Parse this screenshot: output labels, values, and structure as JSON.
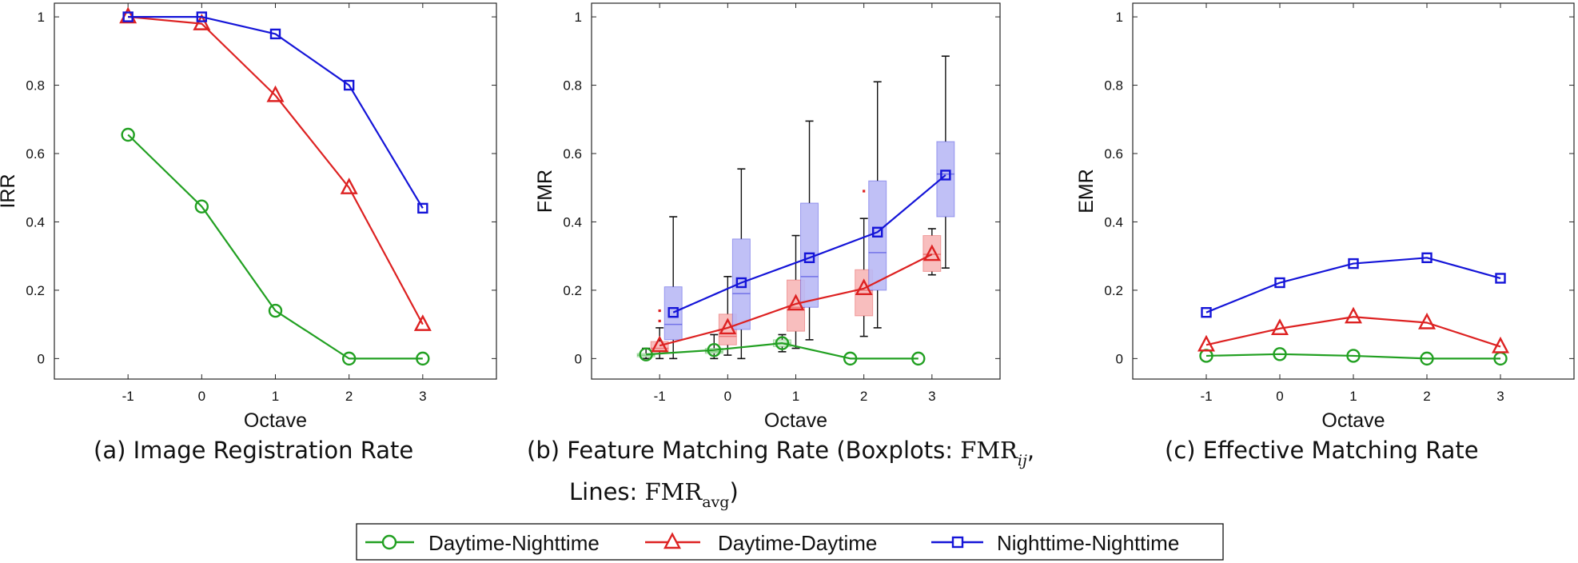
{
  "colors": {
    "green": "#22a022",
    "red": "#dd2222",
    "blue": "#1515d8",
    "redFill": "#f7b7b7",
    "blueFill": "#b9b9f5"
  },
  "legend": [
    "Daytime-Nighttime",
    "Daytime-Daytime",
    "Nighttime-Nighttime"
  ],
  "captions": {
    "a": "(a) Image Registration Rate",
    "b_line1": "(b)  Feature Matching Rate (Boxplots: ",
    "b_math1": "FMR",
    "b_sub1": "ij",
    "b_comma": ",",
    "b_line2": "Lines: ",
    "b_math2": "FMR",
    "b_sub2": "avg",
    "b_close": ")",
    "c": "(c) Effective Matching Rate"
  },
  "chart_data": [
    {
      "type": "line",
      "xlabel": "Octave",
      "ylabel": "IRR",
      "xticks": [
        "-1",
        "0",
        "1",
        "2",
        "3"
      ],
      "yticks": [
        "0",
        "0.2",
        "0.4",
        "0.6",
        "0.8",
        "1"
      ],
      "xlim": [
        -2,
        4
      ],
      "ylim": [
        -0.06,
        1.04
      ],
      "x": [
        -1,
        0,
        1,
        2,
        3
      ],
      "series": [
        {
          "name": "Daytime-Nighttime",
          "color": "green",
          "marker": "circle",
          "values": [
            0.655,
            0.445,
            0.14,
            0.0,
            0.0
          ]
        },
        {
          "name": "Daytime-Daytime",
          "color": "red",
          "marker": "triangle",
          "values": [
            1.0,
            0.98,
            0.77,
            0.5,
            0.1
          ]
        },
        {
          "name": "Nighttime-Nighttime",
          "color": "blue",
          "marker": "square",
          "values": [
            1.0,
            1.0,
            0.95,
            0.8,
            0.44
          ]
        }
      ]
    },
    {
      "type": "line",
      "xlabel": "Octave",
      "ylabel": "FMR",
      "xticks": [
        "-1",
        "0",
        "1",
        "2",
        "3"
      ],
      "yticks": [
        "0",
        "0.2",
        "0.4",
        "0.6",
        "0.8",
        "1"
      ],
      "xlim": [
        -2,
        4
      ],
      "ylim": [
        -0.06,
        1.04
      ],
      "series": [
        {
          "name": "Daytime-Nighttime",
          "color": "green",
          "marker": "circle",
          "x": [
            -1.2,
            -0.2,
            0.8,
            1.8,
            2.8
          ],
          "values": [
            0.012,
            0.025,
            0.045,
            0.0,
            0.0
          ]
        },
        {
          "name": "Daytime-Daytime",
          "color": "red",
          "marker": "triangle",
          "x": [
            -1,
            0,
            1,
            2,
            3
          ],
          "values": [
            0.038,
            0.09,
            0.16,
            0.205,
            0.305
          ]
        },
        {
          "name": "Nighttime-Nighttime",
          "color": "blue",
          "marker": "square",
          "x": [
            -0.8,
            0.2,
            1.2,
            2.2,
            3.2
          ],
          "values": [
            0.135,
            0.222,
            0.295,
            0.37,
            0.537
          ]
        }
      ],
      "boxplots": [
        {
          "series": "Daytime-Nighttime",
          "color": "green",
          "x": [
            -1.2,
            -0.2,
            0.8,
            1.8,
            2.8
          ],
          "boxes": [
            {
              "q1": 0.005,
              "median": 0.01,
              "q3": 0.015,
              "lo": 0.0,
              "hi": 0.03
            },
            {
              "q1": 0.015,
              "median": 0.02,
              "q3": 0.03,
              "lo": 0.0,
              "hi": 0.07
            },
            {
              "q1": 0.035,
              "median": 0.045,
              "q3": 0.055,
              "lo": 0.02,
              "hi": 0.07
            },
            null,
            null
          ]
        },
        {
          "series": "Daytime-Daytime",
          "color": "red",
          "x": [
            -1,
            0,
            1,
            2,
            3
          ],
          "boxes": [
            {
              "q1": 0.02,
              "median": 0.03,
              "q3": 0.05,
              "lo": 0.0,
              "hi": 0.09,
              "outliers": [
                0.11,
                0.14
              ]
            },
            {
              "q1": 0.04,
              "median": 0.065,
              "q3": 0.13,
              "lo": 0.01,
              "hi": 0.24
            },
            {
              "q1": 0.08,
              "median": 0.15,
              "q3": 0.23,
              "lo": 0.03,
              "hi": 0.36
            },
            {
              "q1": 0.125,
              "median": 0.2,
              "q3": 0.26,
              "lo": 0.065,
              "hi": 0.41,
              "outliers": [
                0.49
              ]
            },
            {
              "q1": 0.255,
              "median": 0.305,
              "q3": 0.36,
              "lo": 0.245,
              "hi": 0.38
            }
          ]
        },
        {
          "series": "Nighttime-Nighttime",
          "color": "blue",
          "x": [
            -0.8,
            0.2,
            1.2,
            2.2,
            3.2
          ],
          "boxes": [
            {
              "q1": 0.055,
              "median": 0.1,
              "q3": 0.21,
              "lo": 0.0,
              "hi": 0.415
            },
            {
              "q1": 0.085,
              "median": 0.19,
              "q3": 0.35,
              "lo": 0.0,
              "hi": 0.555
            },
            {
              "q1": 0.15,
              "median": 0.24,
              "q3": 0.455,
              "lo": 0.055,
              "hi": 0.695
            },
            {
              "q1": 0.2,
              "median": 0.31,
              "q3": 0.52,
              "lo": 0.09,
              "hi": 0.81
            },
            {
              "q1": 0.415,
              "median": 0.54,
              "q3": 0.635,
              "lo": 0.265,
              "hi": 0.885
            }
          ]
        }
      ]
    },
    {
      "type": "line",
      "xlabel": "Octave",
      "ylabel": "EMR",
      "xticks": [
        "-1",
        "0",
        "1",
        "2",
        "3"
      ],
      "yticks": [
        "0",
        "0.2",
        "0.4",
        "0.6",
        "0.8",
        "1"
      ],
      "xlim": [
        -2,
        4
      ],
      "ylim": [
        -0.06,
        1.04
      ],
      "x": [
        -1,
        0,
        1,
        2,
        3
      ],
      "series": [
        {
          "name": "Daytime-Nighttime",
          "color": "green",
          "marker": "circle",
          "values": [
            0.008,
            0.013,
            0.008,
            0.0,
            0.0
          ]
        },
        {
          "name": "Daytime-Daytime",
          "color": "red",
          "marker": "triangle",
          "values": [
            0.04,
            0.088,
            0.122,
            0.105,
            0.035
          ]
        },
        {
          "name": "Nighttime-Nighttime",
          "color": "blue",
          "marker": "square",
          "values": [
            0.135,
            0.222,
            0.278,
            0.295,
            0.235
          ]
        }
      ]
    }
  ]
}
